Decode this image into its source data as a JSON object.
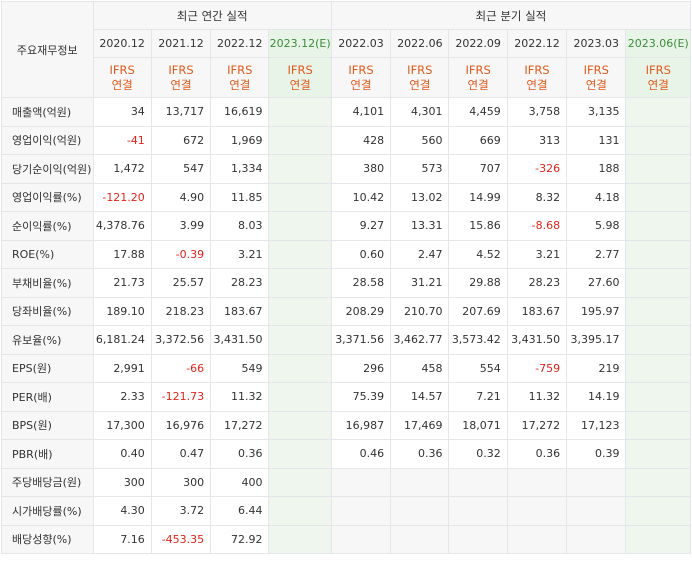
{
  "header": {
    "label_column": "주요재무정보",
    "annual_group": "최근 연간 실적",
    "quarter_group": "최근 분기 실적",
    "annual_periods": [
      {
        "label": "2020.12",
        "estimate": false
      },
      {
        "label": "2021.12",
        "estimate": false
      },
      {
        "label": "2022.12",
        "estimate": false
      },
      {
        "label": "2023.12(E)",
        "estimate": true
      }
    ],
    "quarter_periods": [
      {
        "label": "2022.03",
        "estimate": false
      },
      {
        "label": "2022.06",
        "estimate": false
      },
      {
        "label": "2022.09",
        "estimate": false
      },
      {
        "label": "2022.12",
        "estimate": false
      },
      {
        "label": "2023.03",
        "estimate": false
      },
      {
        "label": "2023.06(E)",
        "estimate": true
      }
    ],
    "ifrs_line1": "IFRS",
    "ifrs_line2": "연결"
  },
  "rows": [
    {
      "label": "매출액(억원)",
      "annual": [
        "34",
        "13,717",
        "16,619",
        ""
      ],
      "quarter": [
        "4,101",
        "4,301",
        "4,459",
        "3,758",
        "3,135",
        ""
      ],
      "group_start": false
    },
    {
      "label": "영업이익(억원)",
      "annual": [
        "-41",
        "672",
        "1,969",
        ""
      ],
      "quarter": [
        "428",
        "560",
        "669",
        "313",
        "131",
        ""
      ],
      "group_start": false
    },
    {
      "label": "당기순이익(억원)",
      "annual": [
        "1,472",
        "547",
        "1,334",
        ""
      ],
      "quarter": [
        "380",
        "573",
        "707",
        "-326",
        "188",
        ""
      ],
      "group_start": false
    },
    {
      "label": "영업이익률(%)",
      "annual": [
        "-121.20",
        "4.90",
        "11.85",
        ""
      ],
      "quarter": [
        "10.42",
        "13.02",
        "14.99",
        "8.32",
        "4.18",
        ""
      ],
      "group_start": true
    },
    {
      "label": "순이익률(%)",
      "annual": [
        "4,378.76",
        "3.99",
        "8.03",
        ""
      ],
      "quarter": [
        "9.27",
        "13.31",
        "15.86",
        "-8.68",
        "5.98",
        ""
      ],
      "group_start": false
    },
    {
      "label": "ROE(%)",
      "annual": [
        "17.88",
        "-0.39",
        "3.21",
        ""
      ],
      "quarter": [
        "0.60",
        "2.47",
        "4.52",
        "3.21",
        "2.77",
        ""
      ],
      "group_start": false
    },
    {
      "label": "부채비율(%)",
      "annual": [
        "21.73",
        "25.57",
        "28.23",
        ""
      ],
      "quarter": [
        "28.58",
        "31.21",
        "29.88",
        "28.23",
        "27.60",
        ""
      ],
      "group_start": true
    },
    {
      "label": "당좌비율(%)",
      "annual": [
        "189.10",
        "218.23",
        "183.67",
        ""
      ],
      "quarter": [
        "208.29",
        "210.70",
        "207.69",
        "183.67",
        "195.97",
        ""
      ],
      "group_start": false
    },
    {
      "label": "유보율(%)",
      "annual": [
        "6,181.24",
        "3,372.56",
        "3,431.50",
        ""
      ],
      "quarter": [
        "3,371.56",
        "3,462.77",
        "3,573.42",
        "3,431.50",
        "3,395.17",
        ""
      ],
      "group_start": false
    },
    {
      "label": "EPS(원)",
      "annual": [
        "2,991",
        "-66",
        "549",
        ""
      ],
      "quarter": [
        "296",
        "458",
        "554",
        "-759",
        "219",
        ""
      ],
      "group_start": true
    },
    {
      "label": "PER(배)",
      "annual": [
        "2.33",
        "-121.73",
        "11.32",
        ""
      ],
      "quarter": [
        "75.39",
        "14.57",
        "7.21",
        "11.32",
        "14.19",
        ""
      ],
      "group_start": false
    },
    {
      "label": "BPS(원)",
      "annual": [
        "17,300",
        "16,976",
        "17,272",
        ""
      ],
      "quarter": [
        "16,987",
        "17,469",
        "18,071",
        "17,272",
        "17,123",
        ""
      ],
      "group_start": false
    },
    {
      "label": "PBR(배)",
      "annual": [
        "0.40",
        "0.47",
        "0.36",
        ""
      ],
      "quarter": [
        "0.46",
        "0.36",
        "0.32",
        "0.36",
        "0.39",
        ""
      ],
      "group_start": false
    },
    {
      "label": "주당배당금(원)",
      "annual": [
        "300",
        "300",
        "400",
        ""
      ],
      "quarter": [
        "",
        "",
        "",
        "",
        "",
        ""
      ],
      "group_start": true
    },
    {
      "label": "시가배당률(%)",
      "annual": [
        "4.30",
        "3.72",
        "6.44",
        ""
      ],
      "quarter": [
        "",
        "",
        "",
        "",
        "",
        ""
      ],
      "group_start": false
    },
    {
      "label": "배당성향(%)",
      "annual": [
        "7.16",
        "-453.35",
        "72.92",
        ""
      ],
      "quarter": [
        "",
        "",
        "",
        "",
        "",
        ""
      ],
      "group_start": false
    }
  ],
  "colors": {
    "negative": "#e0251b",
    "ifrs": "#e05a1c",
    "estimate_text": "#3a8c3a",
    "estimate_bg": "#eef6ee",
    "header_bg": "#f7f7f8"
  }
}
